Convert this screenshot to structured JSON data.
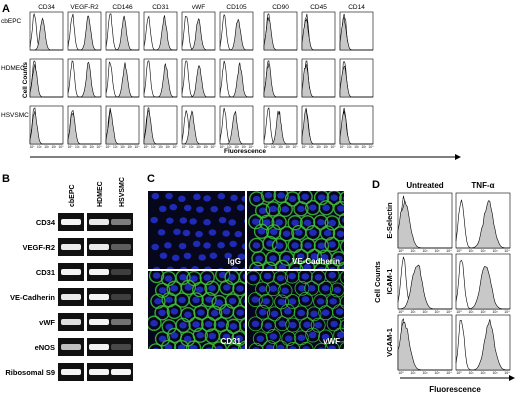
{
  "figure": {
    "panel_a": {
      "label": "A",
      "markers": [
        "CD34",
        "VEGF-R2",
        "CD146",
        "CD31",
        "vWF",
        "CD105",
        "CD90",
        "CD45",
        "CD14"
      ],
      "rows": [
        "cbEPC",
        "HDMEC",
        "HSVSMC"
      ],
      "y_label": "Cell Counts",
      "x_label": "Fluorescence",
      "tick_labels": [
        "10⁰",
        "10¹",
        "10²",
        "10³",
        "10⁴"
      ]
    },
    "panel_b": {
      "label": "B",
      "columns": [
        "cbEPC",
        "HDMEC",
        "HSVSMC"
      ],
      "rows": [
        "CD34",
        "VEGF-R2",
        "CD31",
        "VE-Cadherin",
        "vWF",
        "eNOS",
        "Ribosomal S9"
      ]
    },
    "panel_c": {
      "label": "C",
      "images": [
        "IgG",
        "VE-Cadherin",
        "CD31",
        "vWF"
      ]
    },
    "panel_d": {
      "label": "D",
      "columns": [
        "Untreated",
        "TNF-α"
      ],
      "rows": [
        "E-Selectin",
        "ICAM-1",
        "VCAM-1"
      ],
      "y_label": "Cell Counts",
      "x_label": "Fluorescence",
      "tick_labels": [
        "10⁰",
        "10¹",
        "10²",
        "10³",
        "10⁴"
      ]
    }
  }
}
